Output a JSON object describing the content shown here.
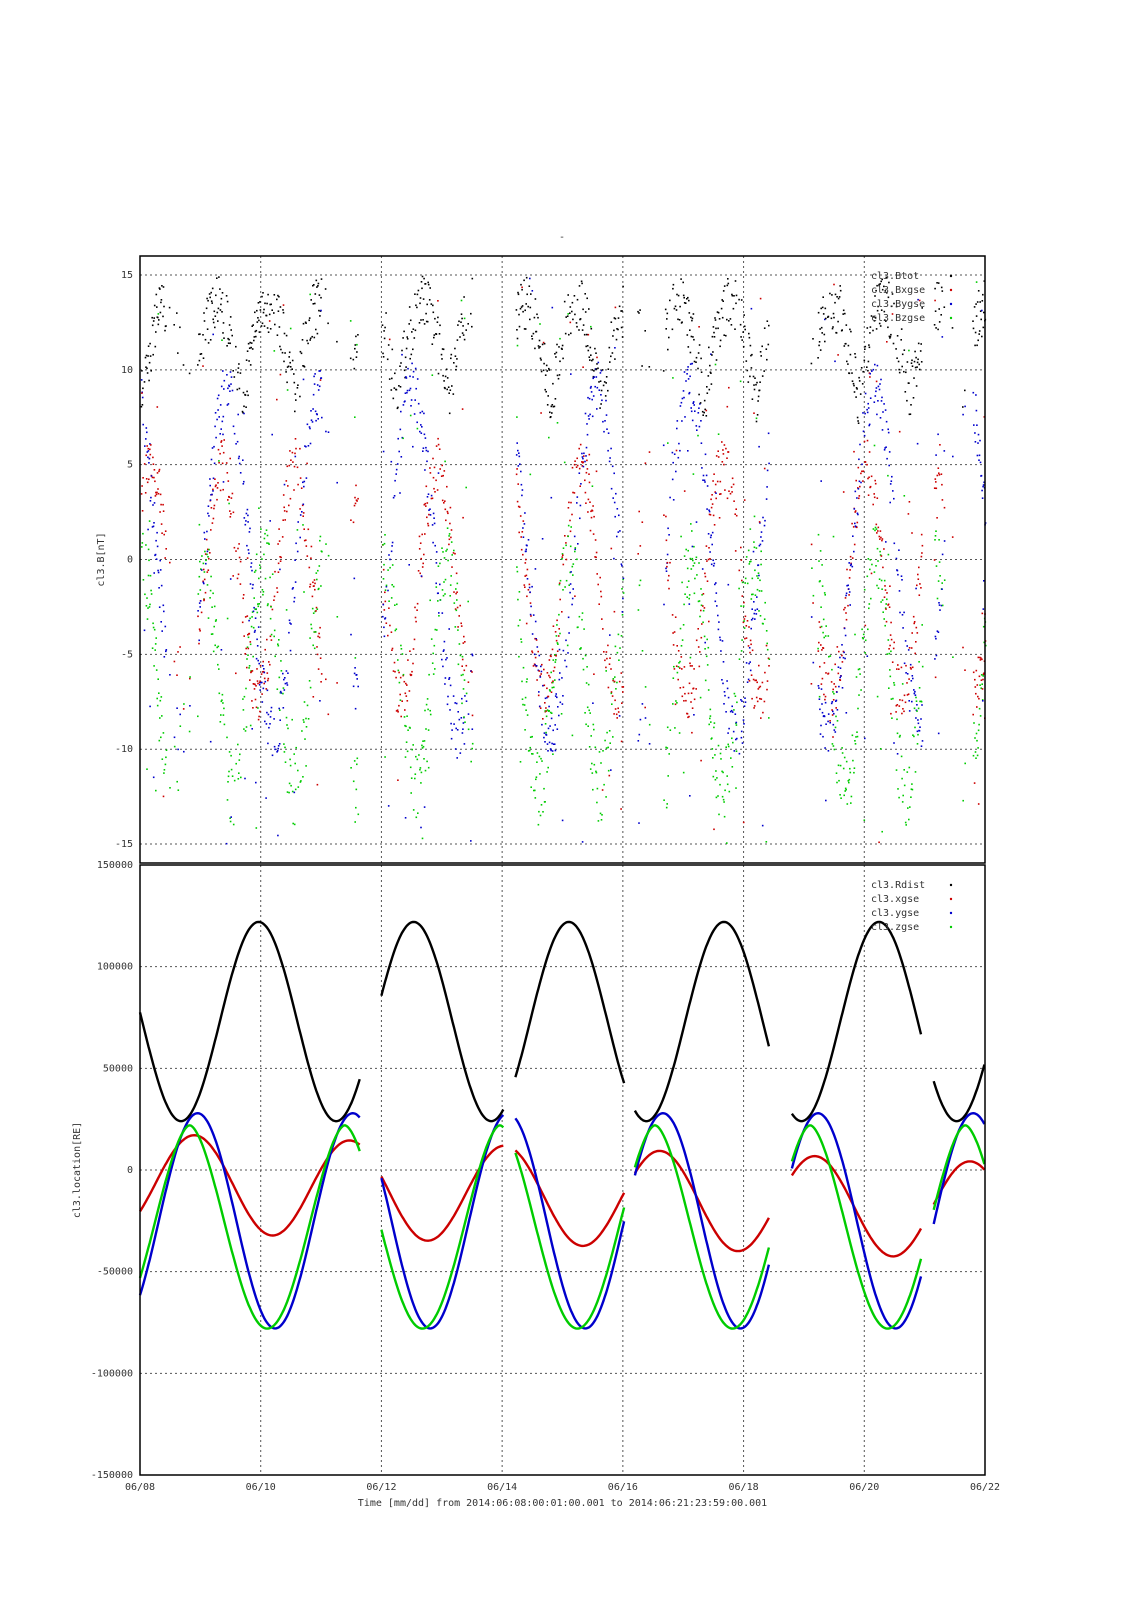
{
  "colors": {
    "black": "#000000",
    "red": "#cc0000",
    "blue": "#0000cc",
    "green": "#00cc00",
    "grid": "#555555"
  },
  "top_title": "-",
  "xaxis": {
    "label": "Time [mm/dd]  from 2014:06:08:00:01:00.001  to  2014:06:21:23:59:00.001",
    "ticks": [
      "06/08",
      "06/10",
      "06/12",
      "06/14",
      "06/16",
      "06/18",
      "06/20",
      "06/22"
    ],
    "range_days": [
      0,
      14
    ]
  },
  "chart_data": [
    {
      "type": "scatter",
      "ylabel": "cl3.B[nT]",
      "ylim": [
        -16,
        16
      ],
      "yticks": [
        15,
        10,
        5,
        0,
        -5,
        -10,
        -15
      ],
      "grid": true,
      "legend": "top-right",
      "series": [
        {
          "name": "cl3.Btot",
          "color": "black"
        },
        {
          "name": "cl3.Bxgse",
          "color": "red"
        },
        {
          "name": "cl3.Bygse",
          "color": "blue"
        },
        {
          "name": "cl3.Bzgse",
          "color": "green"
        }
      ],
      "data_gaps_days": [
        [
          3.6,
          4.0
        ],
        [
          5.5,
          6.0
        ],
        [
          8.0,
          8.2
        ]
      ],
      "note_on_values": "dense scatter of magnetic field components, roughly between -15 and 15 nT"
    },
    {
      "type": "line",
      "ylabel": "cl3.location[RE]",
      "ylim": [
        -150000,
        150000
      ],
      "yticks": [
        150000,
        100000,
        50000,
        0,
        -50000,
        -100000,
        -150000
      ],
      "grid": true,
      "legend": "top-right",
      "series": [
        {
          "name": "cl3.Rdist",
          "color": "black"
        },
        {
          "name": "cl3.xgse",
          "color": "red"
        },
        {
          "name": "cl3.ygse",
          "color": "blue"
        },
        {
          "name": "cl3.zgse",
          "color": "green"
        }
      ],
      "orbit_period_days": 2.57,
      "rdist_range": [
        24000,
        122000
      ],
      "perigee_days": [
        0.68,
        3.25,
        5.82,
        8.39,
        10.96,
        13.53
      ],
      "segments_days": [
        [
          0.0,
          3.65
        ],
        [
          4.0,
          6.02
        ],
        [
          6.22,
          8.02
        ],
        [
          8.2,
          10.42
        ],
        [
          10.8,
          12.95
        ],
        [
          13.15,
          14.0
        ]
      ]
    }
  ]
}
